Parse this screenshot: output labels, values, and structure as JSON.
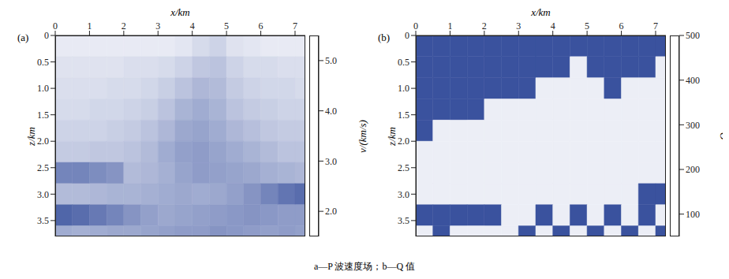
{
  "caption": "a—P 波速度场；b—Q 值",
  "chart_data": [
    {
      "type": "heatmap",
      "title": "(a)",
      "x_label": "x/km",
      "y_label": "z/km",
      "xlim": [
        0,
        7.3
      ],
      "xticks": [
        0,
        1,
        2,
        3,
        4,
        5,
        6,
        7
      ],
      "ylim": [
        0,
        3.8
      ],
      "yticks": [
        0,
        0.5,
        {
          "value": 1,
          "label": "1.0"
        },
        1.5,
        {
          "value": 2,
          "label": "2.0"
        },
        2.5,
        {
          "value": 3,
          "label": "3.0"
        },
        3.5
      ],
      "x_edges": [
        0,
        0.5,
        1,
        1.5,
        2,
        2.5,
        3,
        3.5,
        4,
        4.5,
        5,
        5.5,
        6,
        6.5,
        7,
        7.3
      ],
      "z_edges": [
        0,
        0.4,
        0.8,
        1.2,
        1.6,
        2.0,
        2.4,
        2.8,
        3.2,
        3.6,
        3.8
      ],
      "cells": [
        [
          1.6,
          1.6,
          1.6,
          1.6,
          1.6,
          1.6,
          1.6,
          1.7,
          2.0,
          2.2,
          1.8,
          1.7,
          1.6,
          1.6,
          1.6
        ],
        [
          1.8,
          1.8,
          1.8,
          1.8,
          1.9,
          1.9,
          2.0,
          2.2,
          2.5,
          2.6,
          2.2,
          2.0,
          2.0,
          1.9,
          1.9
        ],
        [
          1.9,
          1.9,
          1.9,
          2.0,
          2.0,
          2.1,
          2.3,
          2.6,
          2.9,
          2.8,
          2.4,
          2.2,
          2.1,
          2.1,
          2.0
        ],
        [
          2.0,
          2.0,
          2.1,
          2.1,
          2.2,
          2.3,
          2.6,
          3.0,
          3.2,
          3.0,
          2.6,
          2.4,
          2.3,
          2.2,
          2.2
        ],
        [
          2.2,
          2.2,
          2.2,
          2.3,
          2.4,
          2.6,
          2.9,
          3.3,
          3.4,
          3.2,
          2.9,
          2.7,
          2.5,
          2.4,
          2.4
        ],
        [
          2.4,
          2.4,
          2.5,
          2.5,
          2.6,
          2.8,
          3.2,
          3.5,
          3.6,
          3.4,
          3.2,
          3.0,
          2.8,
          2.6,
          2.6
        ],
        [
          4.2,
          4.2,
          4.0,
          3.8,
          2.8,
          2.9,
          3.1,
          3.4,
          3.6,
          3.5,
          3.4,
          3.3,
          3.1,
          3.0,
          2.9
        ],
        [
          2.8,
          2.8,
          2.9,
          3.0,
          3.0,
          3.1,
          3.2,
          3.3,
          3.2,
          3.3,
          3.5,
          3.8,
          4.2,
          4.6,
          4.8
        ],
        [
          5.0,
          4.8,
          4.5,
          4.2,
          3.8,
          3.5,
          3.3,
          3.4,
          3.5,
          3.6,
          3.7,
          3.8,
          3.7,
          3.6,
          3.6
        ],
        [
          3.2,
          3.1,
          3.2,
          3.3,
          3.3,
          3.4,
          3.5,
          3.6,
          3.6,
          3.8,
          3.7,
          3.6,
          3.5,
          3.6,
          3.5
        ]
      ],
      "colorbar": {
        "label": "v/(km/s)",
        "range": [
          1.5,
          5.5
        ],
        "ticks": [
          {
            "value": 2,
            "label": "2.0"
          },
          {
            "value": 3,
            "label": "3.0"
          },
          {
            "value": 4,
            "label": "4.0"
          },
          {
            "value": 5,
            "label": "5.0"
          }
        ]
      }
    },
    {
      "type": "heatmap",
      "title": "(b)",
      "x_label": "x/km",
      "y_label": "z/km",
      "xlim": [
        0,
        7.3
      ],
      "xticks": [
        0,
        1,
        2,
        3,
        4,
        5,
        6,
        7
      ],
      "ylim": [
        0,
        3.8
      ],
      "yticks": [
        0,
        0.5,
        {
          "value": 1,
          "label": "1.0"
        },
        1.5,
        {
          "value": 2,
          "label": "2.0"
        },
        2.5,
        {
          "value": 3,
          "label": "3.0"
        },
        3.5
      ],
      "x_edges": [
        0,
        0.5,
        1,
        1.5,
        2,
        2.5,
        3,
        3.5,
        4,
        4.5,
        5,
        5.5,
        6,
        6.5,
        7,
        7.3
      ],
      "z_edges": [
        0,
        0.4,
        0.8,
        1.2,
        1.6,
        2.0,
        2.4,
        2.8,
        3.2,
        3.6,
        3.8
      ],
      "cells": [
        [
          500,
          500,
          500,
          500,
          500,
          500,
          500,
          500,
          500,
          500,
          500,
          500,
          500,
          500,
          500
        ],
        [
          500,
          500,
          500,
          500,
          500,
          500,
          500,
          500,
          500,
          50,
          500,
          500,
          500,
          500,
          50
        ],
        [
          500,
          500,
          500,
          500,
          500,
          500,
          500,
          50,
          50,
          50,
          50,
          500,
          50,
          50,
          50
        ],
        [
          500,
          500,
          500,
          500,
          50,
          50,
          50,
          50,
          50,
          50,
          50,
          50,
          50,
          50,
          50
        ],
        [
          500,
          50,
          50,
          50,
          50,
          50,
          50,
          50,
          50,
          50,
          50,
          50,
          50,
          50,
          50
        ],
        [
          50,
          50,
          50,
          50,
          50,
          50,
          50,
          50,
          50,
          50,
          50,
          50,
          50,
          50,
          50
        ],
        [
          50,
          50,
          50,
          50,
          50,
          50,
          50,
          50,
          50,
          50,
          50,
          50,
          50,
          50,
          50
        ],
        [
          50,
          50,
          50,
          50,
          50,
          50,
          50,
          50,
          50,
          50,
          50,
          50,
          50,
          500,
          500
        ],
        [
          500,
          500,
          500,
          500,
          500,
          50,
          50,
          500,
          50,
          500,
          50,
          500,
          50,
          500,
          50
        ],
        [
          50,
          500,
          50,
          50,
          50,
          50,
          500,
          50,
          500,
          50,
          500,
          50,
          500,
          50,
          500
        ]
      ],
      "colorbar": {
        "label": "Q",
        "range": [
          50,
          500
        ],
        "ticks": [
          100,
          200,
          300,
          400,
          500
        ]
      }
    }
  ]
}
